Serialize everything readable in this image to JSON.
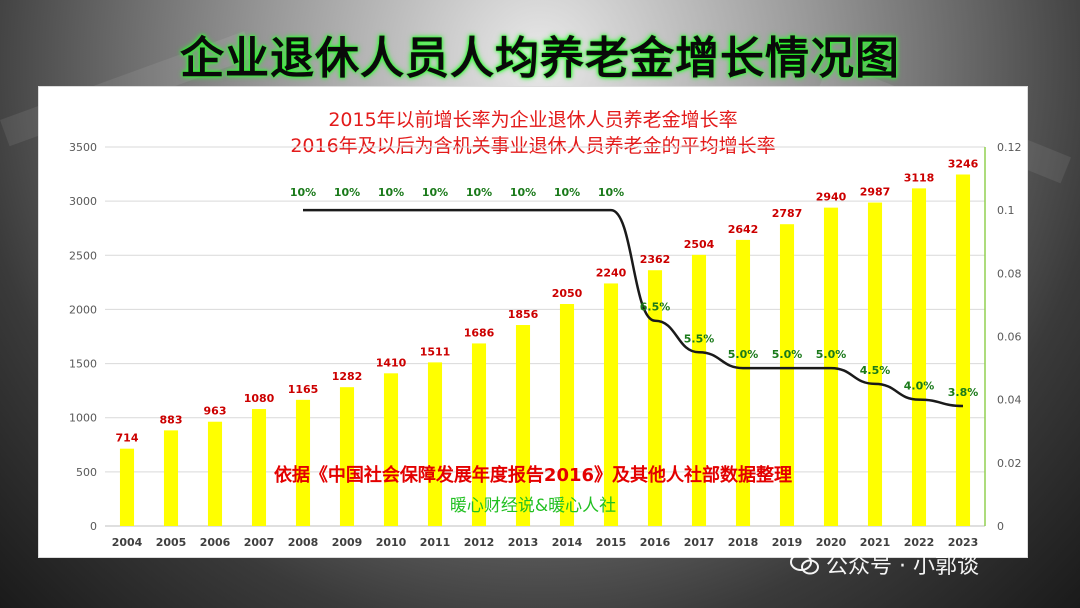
{
  "title": "企业退休人员人均养老金增长情况图",
  "subtitle_lines": [
    "2015年以前增长率为企业退休人员养老金增长率",
    "2016年及以后为含机关事业退休人员养老金的平均增长率"
  ],
  "notes": {
    "source": "依据《中国社会保障发展年度报告2016》及其他人社部数据整理",
    "author": "暖心财经说&暖心人社"
  },
  "watermark": "公众号 · 小郭谈",
  "colors": {
    "bar": "#ffff00",
    "bar_label": "#cc0000",
    "line": "#1a1a1a",
    "rate_label": "#1a7a1a",
    "axis_right": "#92d050"
  },
  "chart_data": {
    "type": "bar",
    "categories": [
      "2004",
      "2005",
      "2006",
      "2007",
      "2008",
      "2009",
      "2010",
      "2011",
      "2012",
      "2013",
      "2014",
      "2015",
      "2016",
      "2017",
      "2018",
      "2019",
      "2020",
      "2021",
      "2022",
      "2023"
    ],
    "series": [
      {
        "values": [
          714,
          883,
          963,
          1080,
          1165,
          1282,
          1410,
          1511,
          1686,
          1856,
          2050,
          2240,
          2362,
          2504,
          2642,
          2787,
          2940,
          2987,
          3118,
          3246
        ]
      },
      {
        "type": "line",
        "axis": "right",
        "x": [
          "2008",
          "2009",
          "2010",
          "2011",
          "2012",
          "2013",
          "2014",
          "2015",
          "2016",
          "2017",
          "2018",
          "2019",
          "2020",
          "2021",
          "2022",
          "2023"
        ],
        "values": [
          0.1,
          0.1,
          0.1,
          0.1,
          0.1,
          0.1,
          0.1,
          0.1,
          0.065,
          0.055,
          0.05,
          0.05,
          0.05,
          0.045,
          0.04,
          0.038
        ],
        "labels": [
          "10%",
          "10%",
          "10%",
          "10%",
          "10%",
          "10%",
          "10%",
          "10%",
          "6.5%",
          "5.5%",
          "5.0%",
          "5.0%",
          "5.0%",
          "4.5%",
          "4.0%",
          "3.8%"
        ]
      }
    ],
    "ylim": [
      0,
      3500
    ],
    "yticks": [
      "0",
      "500",
      "1000",
      "1500",
      "2000",
      "2500",
      "3000",
      "3500"
    ],
    "y2lim": [
      0,
      0.12
    ],
    "y2ticks": [
      "0",
      "0.02",
      "0.04",
      "0.06",
      "0.08",
      "0.1",
      "0.12"
    ],
    "grid": true
  }
}
